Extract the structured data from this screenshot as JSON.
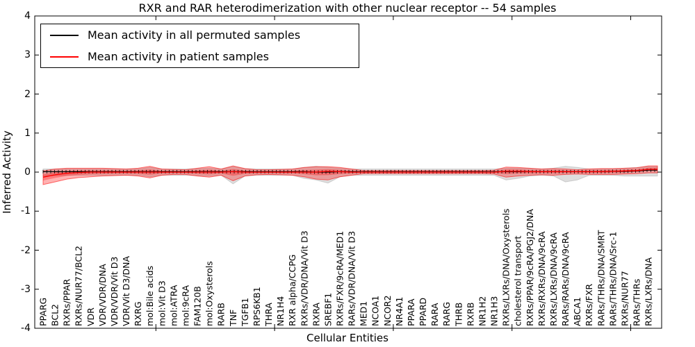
{
  "figure": {
    "title": "RXR and RAR heterodimerization with other nuclear receptor -- 54 samples",
    "background": "#ffffff"
  },
  "legend": {
    "position": "upper left",
    "items": [
      {
        "label": "Mean activity in all permuted samples",
        "color": "#000000"
      },
      {
        "label": "Mean activity in patient samples",
        "color": "#ff0000"
      }
    ]
  },
  "chart_data": {
    "type": "line",
    "title": "RXR and RAR heterodimerization with other nuclear receptor -- 54 samples",
    "xlabel": "Cellular Entities",
    "ylabel": "Inferred Activity",
    "ylim": [
      -4,
      4
    ],
    "yticks": [
      -4,
      -3,
      -2,
      -1,
      0,
      1,
      2,
      3,
      4
    ],
    "grid": false,
    "legend_position": "upper left",
    "categories": [
      "PPARG",
      "BCL2",
      "RXRs/PPAR",
      "RXRs/NUR77/BCL2",
      "VDR",
      "VDR/VDR/DNA",
      "VDR/VDR/Vit D3",
      "VDR/Vit D3/DNA",
      "RXRG",
      "mol:Bile acids",
      "mol:Vit D3",
      "mol:ATRA",
      "mol:9cRA",
      "FAM120B",
      "mol:Oxysterols",
      "RARB",
      "TNF",
      "TGFB1",
      "RPS6KB1",
      "THRA",
      "NR1H4",
      "RXR alpha/CCPG",
      "RXRs/VDR/DNA/Vit D3",
      "RXRA",
      "SREBF1",
      "RXRs/FXR/9cRA/MED1",
      "RARs/VDR/DNA/Vit D3",
      "MED1",
      "NCOA1",
      "NCOR2",
      "NR4A1",
      "PPARA",
      "PPARD",
      "RARA",
      "RARG",
      "THRB",
      "RXRB",
      "NR1H2",
      "NR1H3",
      "RXRs/LXRs/DNA/Oxysterols",
      "cholesterol transport",
      "RXRs/PPAR/9cRA/PGJ2/DNA",
      "RXRs/RXRs/DNA/9cRA",
      "RXRs/LXRs/DNA/9cRA",
      "RARs/RARs/DNA/9cRA",
      "ABCA1",
      "RXRs/FXR",
      "RARs/THRs/DNA/SMRT",
      "RARs/THRs/DNA/Src-1",
      "RXRs/NUR77",
      "RARs/THRs",
      "RXRs/LXRs/DNA"
    ],
    "series": [
      {
        "name": "Mean activity in all permuted samples",
        "color": "#000000",
        "values": [
          0.01,
          0.01,
          0.01,
          0.01,
          0.01,
          0.01,
          0.01,
          0.01,
          0.01,
          0.01,
          0.01,
          0.01,
          0.01,
          0.01,
          0.01,
          0.01,
          0.01,
          0.01,
          0.01,
          0.01,
          0.01,
          0.01,
          0.01,
          0.0,
          0.0,
          0.01,
          0.01,
          0.01,
          0.01,
          0.01,
          0.01,
          0.01,
          0.01,
          0.01,
          0.01,
          0.01,
          0.01,
          0.01,
          0.01,
          0.01,
          0.01,
          0.01,
          0.01,
          0.01,
          0.01,
          0.01,
          0.01,
          0.01,
          0.02,
          0.02,
          0.03,
          0.05
        ],
        "band_hi": [
          0.08,
          0.08,
          0.08,
          0.08,
          0.08,
          0.08,
          0.08,
          0.08,
          0.08,
          0.12,
          0.08,
          0.08,
          0.08,
          0.09,
          0.1,
          0.08,
          0.14,
          0.09,
          0.08,
          0.08,
          0.08,
          0.08,
          0.12,
          0.15,
          0.12,
          0.1,
          0.08,
          0.08,
          0.08,
          0.08,
          0.08,
          0.08,
          0.08,
          0.08,
          0.08,
          0.08,
          0.08,
          0.08,
          0.08,
          0.1,
          0.1,
          0.09,
          0.08,
          0.1,
          0.15,
          0.12,
          0.08,
          0.08,
          0.08,
          0.1,
          0.12,
          0.14
        ],
        "band_lo": [
          -0.1,
          -0.09,
          -0.08,
          -0.08,
          -0.08,
          -0.08,
          -0.08,
          -0.08,
          -0.08,
          -0.12,
          -0.08,
          -0.08,
          -0.08,
          -0.09,
          -0.1,
          -0.08,
          -0.3,
          -0.1,
          -0.08,
          -0.08,
          -0.08,
          -0.08,
          -0.16,
          -0.2,
          -0.28,
          -0.12,
          -0.08,
          -0.08,
          -0.08,
          -0.08,
          -0.08,
          -0.08,
          -0.08,
          -0.08,
          -0.08,
          -0.08,
          -0.08,
          -0.08,
          -0.08,
          -0.2,
          -0.16,
          -0.1,
          -0.08,
          -0.1,
          -0.25,
          -0.2,
          -0.08,
          -0.08,
          -0.08,
          -0.1,
          -0.1,
          -0.1
        ]
      },
      {
        "name": "Mean activity in patient samples",
        "color": "#ff0000",
        "values": [
          -0.13,
          -0.07,
          -0.03,
          -0.01,
          0.0,
          0.0,
          0.0,
          0.0,
          0.0,
          0.0,
          0.0,
          0.0,
          0.0,
          0.0,
          0.0,
          0.0,
          0.01,
          0.0,
          0.0,
          0.0,
          0.0,
          0.0,
          0.0,
          0.0,
          0.02,
          0.01,
          0.0,
          0.0,
          0.0,
          0.0,
          0.0,
          0.0,
          0.0,
          0.0,
          0.0,
          0.0,
          0.0,
          0.0,
          0.0,
          0.02,
          0.02,
          0.01,
          0.01,
          0.01,
          0.01,
          0.01,
          0.01,
          0.01,
          0.02,
          0.03,
          0.04,
          0.07
        ],
        "band_hi": [
          0.03,
          0.08,
          0.1,
          0.1,
          0.1,
          0.1,
          0.09,
          0.08,
          0.1,
          0.15,
          0.08,
          0.07,
          0.06,
          0.1,
          0.14,
          0.08,
          0.16,
          0.09,
          0.06,
          0.06,
          0.07,
          0.08,
          0.12,
          0.14,
          0.14,
          0.12,
          0.08,
          0.04,
          0.04,
          0.04,
          0.04,
          0.04,
          0.04,
          0.04,
          0.04,
          0.04,
          0.04,
          0.04,
          0.05,
          0.13,
          0.12,
          0.1,
          0.08,
          0.09,
          0.08,
          0.06,
          0.08,
          0.09,
          0.09,
          0.1,
          0.11,
          0.16
        ],
        "band_lo": [
          -0.32,
          -0.25,
          -0.18,
          -0.14,
          -0.12,
          -0.1,
          -0.09,
          -0.08,
          -0.1,
          -0.15,
          -0.08,
          -0.06,
          -0.06,
          -0.1,
          -0.13,
          -0.08,
          -0.22,
          -0.1,
          -0.07,
          -0.06,
          -0.07,
          -0.08,
          -0.12,
          -0.18,
          -0.2,
          -0.12,
          -0.08,
          -0.04,
          -0.04,
          -0.04,
          -0.04,
          -0.04,
          -0.04,
          -0.04,
          -0.04,
          -0.04,
          -0.04,
          -0.04,
          -0.05,
          -0.13,
          -0.1,
          -0.08,
          -0.07,
          -0.08,
          -0.06,
          -0.05,
          -0.06,
          -0.06,
          -0.06,
          -0.05,
          -0.04,
          -0.02
        ]
      }
    ]
  }
}
